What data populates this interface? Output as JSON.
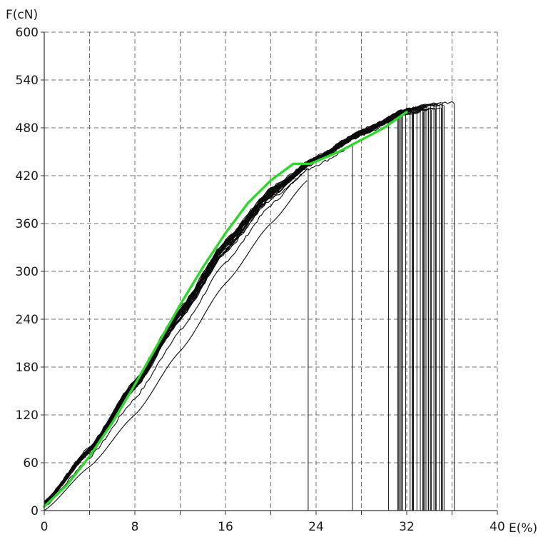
{
  "chart_data": {
    "type": "line",
    "xlabel": "E(%)",
    "ylabel": "F(cN)",
    "xlim": [
      0,
      40
    ],
    "ylim": [
      0,
      600
    ],
    "x_ticks": [
      0,
      8,
      16,
      24,
      32,
      40
    ],
    "y_ticks": [
      0,
      60,
      120,
      180,
      240,
      300,
      360,
      420,
      480,
      540,
      600
    ],
    "x_grid_step": 4,
    "y_grid_step": 60,
    "grid": true,
    "legend": "none",
    "colors": {
      "specimen_curves": "#0a0a0a",
      "mean_curve": "#2bd82b",
      "grid": "#6f6f6f"
    },
    "series": [
      {
        "role": "specimen_curves",
        "count_approx": 30,
        "break_elongations": [
          23.3,
          27.2,
          30.4,
          31.2,
          31.5,
          31.9,
          32.3,
          32.6,
          32.9,
          33.2,
          33.4,
          33.7,
          33.9,
          34.1,
          34.4,
          34.6,
          34.9,
          35.1,
          36.2
        ],
        "peak_forces": [
          430,
          458,
          490,
          494,
          496,
          498,
          500,
          502,
          503,
          504,
          505,
          506,
          507,
          508,
          508,
          509,
          509,
          510,
          512
        ],
        "upper_envelope": {
          "x": [
            0,
            4,
            8,
            12,
            16,
            20,
            24,
            28,
            32,
            34,
            36
          ],
          "y": [
            10,
            80,
            165,
            255,
            340,
            405,
            445,
            478,
            505,
            510,
            512
          ]
        },
        "lower_envelope": {
          "x": [
            0,
            4,
            8,
            12,
            16,
            20,
            23.3
          ],
          "y": [
            0,
            55,
            120,
            200,
            285,
            360,
            415
          ]
        }
      },
      {
        "role": "mean_curve",
        "x": [
          0,
          2,
          4,
          6,
          8,
          10,
          12,
          14,
          16,
          18,
          20,
          22,
          23.5,
          26,
          28,
          30,
          32
        ],
        "y": [
          5,
          32,
          68,
          110,
          158,
          208,
          258,
          305,
          348,
          386,
          414,
          435,
          435,
          450,
          465,
          480,
          500
        ]
      }
    ]
  }
}
